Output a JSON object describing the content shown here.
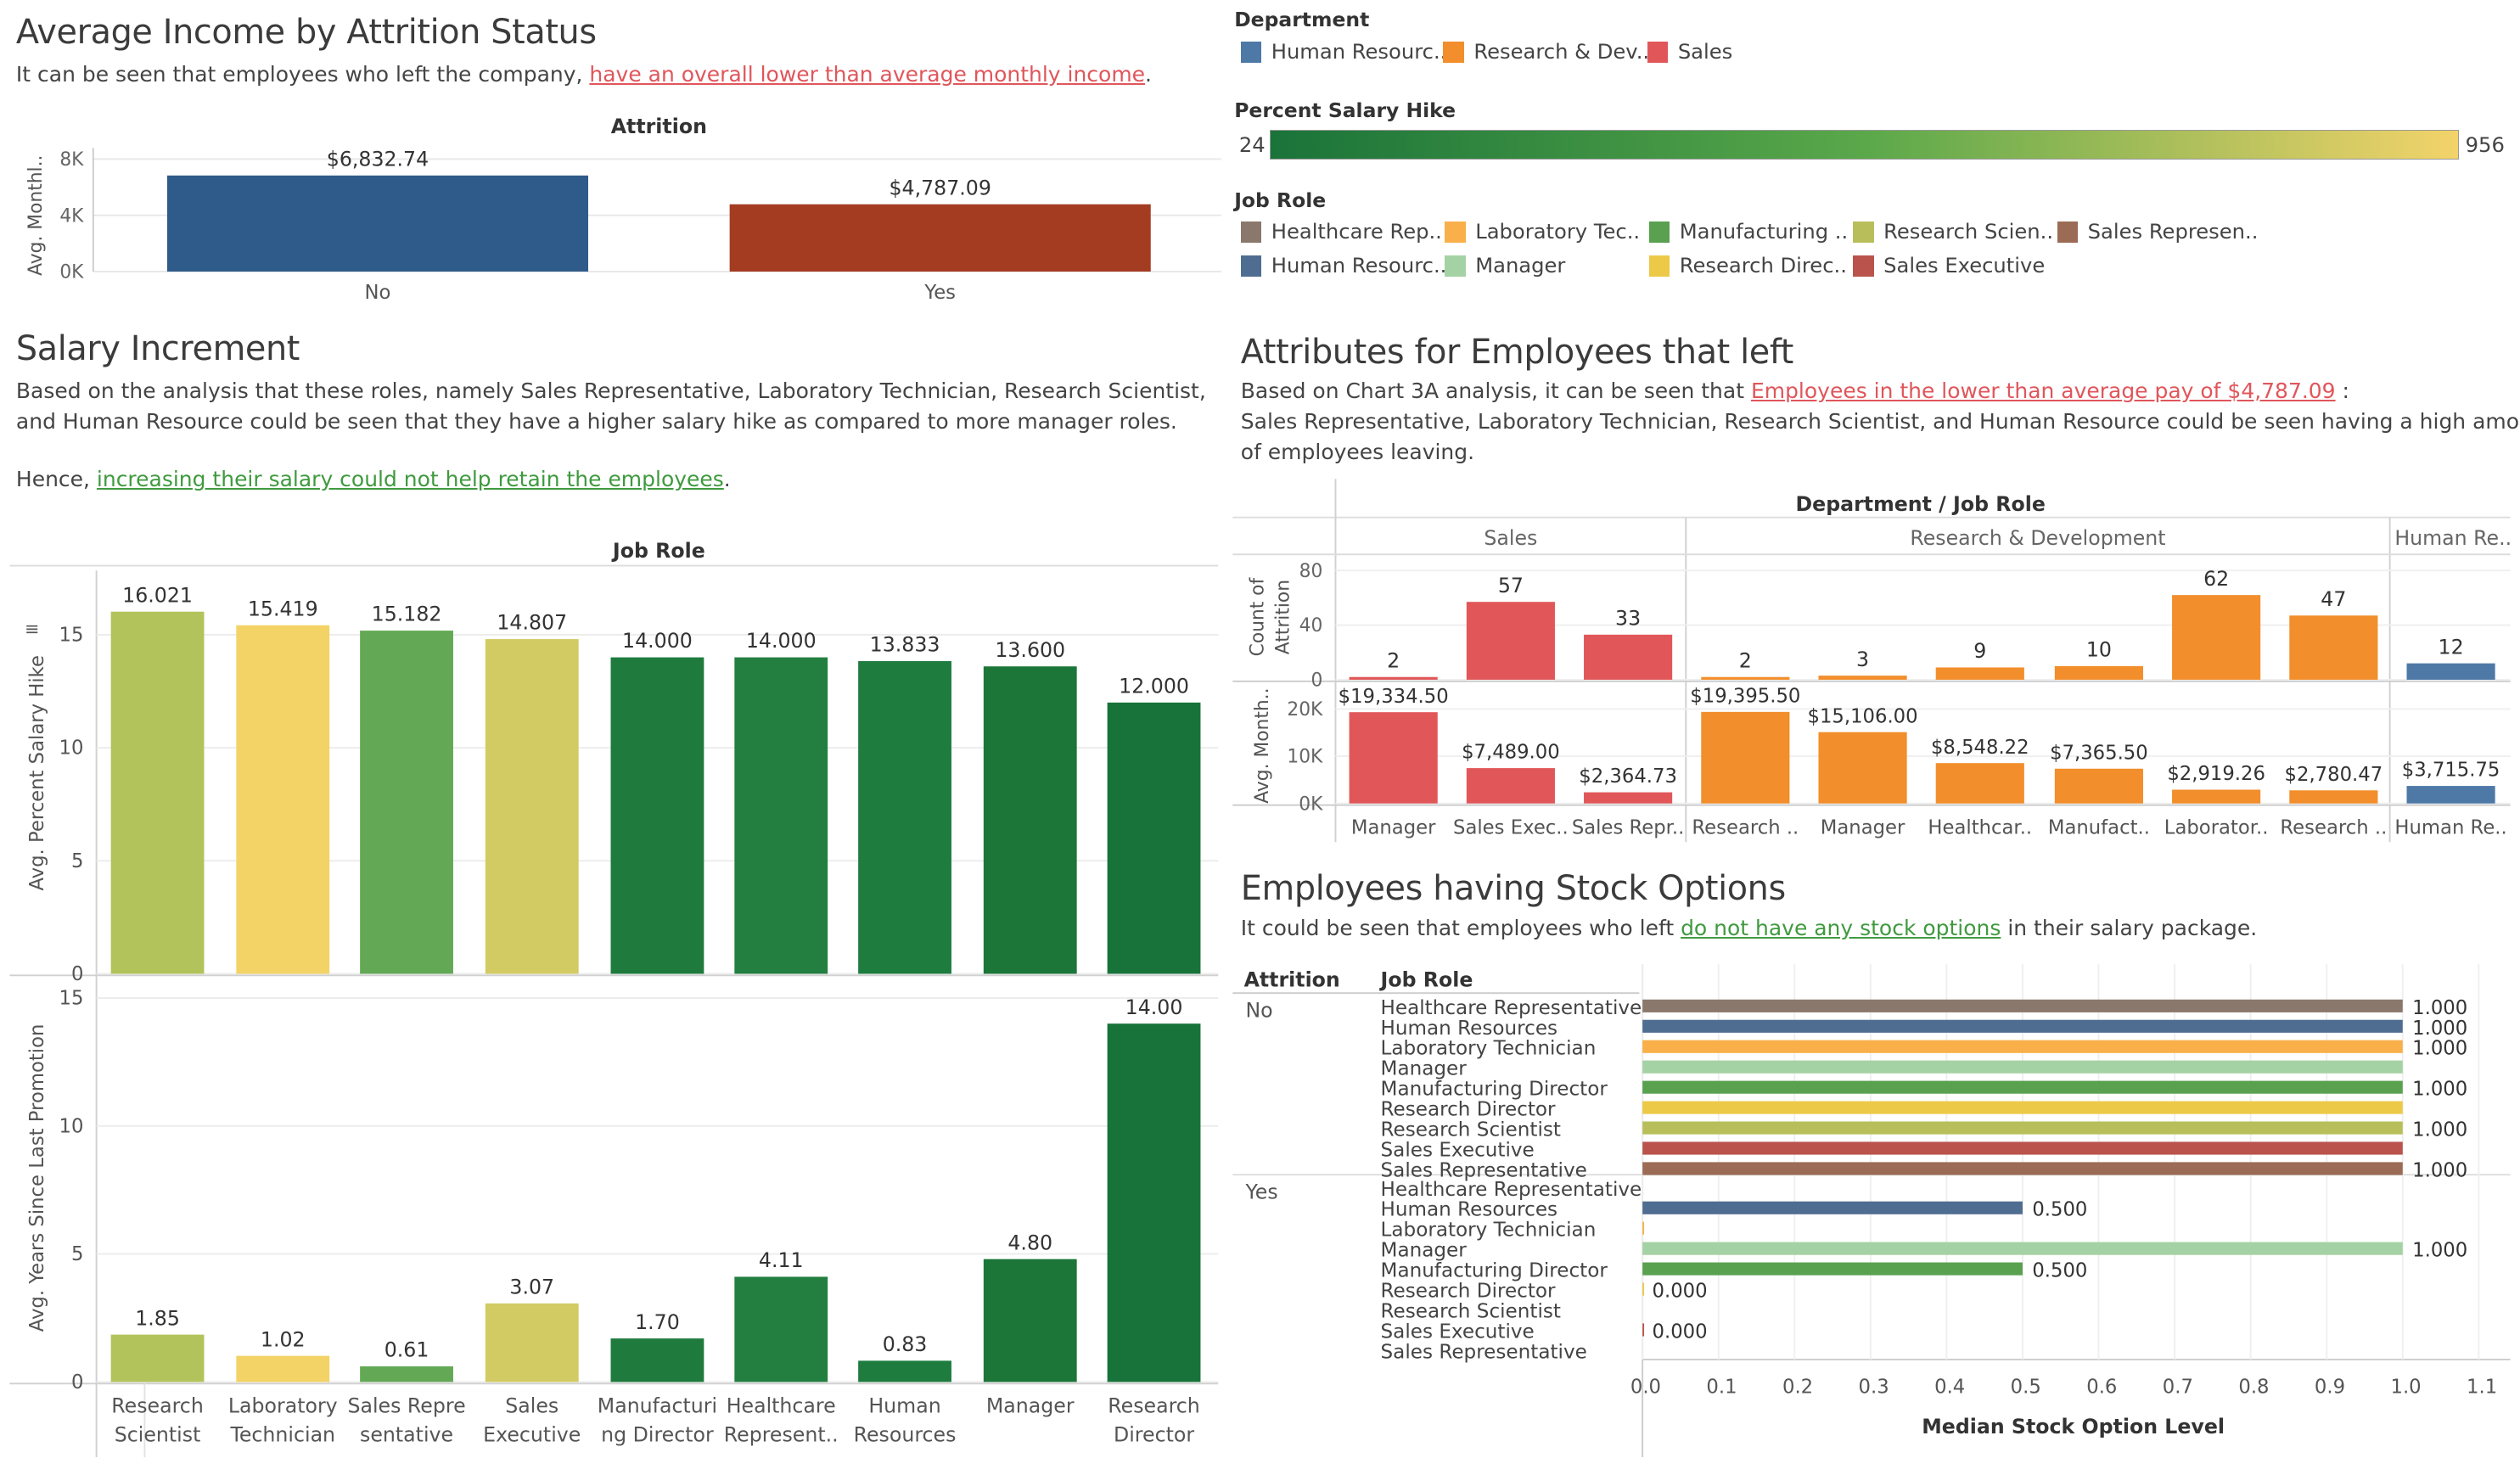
{
  "income_section": {
    "title": "Average Income by Attrition Status",
    "desc_prefix": "It can be seen that employees who left the company, ",
    "desc_link": "have an overall lower than average monthly income",
    "desc_suffix": "."
  },
  "salary_section": {
    "title": "Salary Increment",
    "desc_line1": "Based on the analysis that these roles, namely Sales Representative, Laboratory Technician, Research Scientist,",
    "desc_line2": "and Human Resource could be seen that they have a higher salary hike as compared to more manager roles.",
    "desc_line3_prefix": "Hence, ",
    "desc_line3_link": "increasing their salary could not help retain the employees",
    "desc_line3_suffix": "."
  },
  "attributes_section": {
    "title": "Attributes for Employees that left",
    "desc_line1_prefix": "Based on Chart 3A analysis, it can be seen that ",
    "desc_line1_link": "Employees in the lower than average pay of $4,787.09",
    "desc_line1_suffix": " :",
    "desc_line2": "Sales Representative, Laboratory Technician, Research Scientist, and Human Resource could be seen having a high amount",
    "desc_line3": "of employees leaving."
  },
  "stock_section": {
    "title": "Employees having Stock Options",
    "desc_prefix": "It could be seen that employees who left ",
    "desc_link": "do not have any stock options",
    "desc_suffix": " in their salary package."
  },
  "legends": {
    "department": {
      "title": "Department",
      "items": [
        {
          "label": "Human Resourc..",
          "color": "#4e79a7"
        },
        {
          "label": "Research & Dev..",
          "color": "#f28e2b"
        },
        {
          "label": "Sales",
          "color": "#e15759"
        }
      ]
    },
    "salary_hike": {
      "title": "Percent Salary Hike",
      "min_label": "24",
      "max_label": "956",
      "color_low": "#1a7339",
      "color_mid": "#5aa84a",
      "color_high": "#f3d36a"
    },
    "job_role": {
      "title": "Job Role",
      "items": [
        {
          "label": "Healthcare Rep..",
          "color": "#8a786c"
        },
        {
          "label": "Laboratory Tec..",
          "color": "#f9b04b"
        },
        {
          "label": "Manufacturing ..",
          "color": "#59a14f"
        },
        {
          "label": "Research Scien..",
          "color": "#b8bf5a"
        },
        {
          "label": "Sales Represen..",
          "color": "#9c6b55"
        },
        {
          "label": "Human Resourc..",
          "color": "#4f6d91"
        },
        {
          "label": "Manager",
          "color": "#a5d2a4"
        },
        {
          "label": "Research Direc..",
          "color": "#edc948"
        },
        {
          "label": "Sales Executive",
          "color": "#b9534b"
        }
      ]
    }
  },
  "chart_data": [
    {
      "id": "income",
      "type": "bar",
      "title": "",
      "header": "Attrition",
      "ylabel": "Avg. Monthl..",
      "categories": [
        "No",
        "Yes"
      ],
      "values": [
        6832.74,
        4787.09
      ],
      "labels": [
        "$6,832.74",
        "$4,787.09"
      ],
      "colors": [
        "#2f5b8a",
        "#a43c22"
      ],
      "yticks": [
        "0K",
        "4K",
        "8K"
      ],
      "ylim": [
        0,
        8000
      ]
    },
    {
      "id": "hike",
      "type": "bar",
      "header": "Job Role",
      "ylabel": "Avg. Percent Salary Hike",
      "categories": [
        "Research Scientist",
        "Laboratory Technician",
        "Sales Representative",
        "Sales Executive",
        "Manufacturing Director",
        "Healthcare Representative",
        "Human Resources",
        "Manager",
        "Research Director"
      ],
      "values": [
        16.021,
        15.419,
        15.182,
        14.807,
        14.0,
        14.0,
        13.833,
        13.6,
        12.0
      ],
      "labels": [
        "16.021",
        "15.419",
        "15.182",
        "14.807",
        "14.000",
        "14.000",
        "13.833",
        "13.600",
        "12.000"
      ],
      "colors": [
        "#b3c35c",
        "#f3d266",
        "#63a955",
        "#d2cb63",
        "#1e7b3d",
        "#237f40",
        "#1f7c3f",
        "#1b7638",
        "#18733a"
      ],
      "yticks": [
        "0",
        "5",
        "10",
        "15"
      ],
      "ylim": [
        0,
        17.5
      ]
    },
    {
      "id": "promotion",
      "type": "bar",
      "ylabel": "Avg. Years Since Last Promotion",
      "categories": [
        "Research Scientist",
        "Laboratory Technician",
        "Sales Representative",
        "Sales Executive",
        "Manufacturing Director",
        "Healthcare Representative",
        "Human Resources",
        "Manager",
        "Research Director"
      ],
      "axis_labels": [
        [
          "Research",
          "Scientist"
        ],
        [
          "Laboratory",
          "Technician"
        ],
        [
          "Sales Repre",
          "sentative"
        ],
        [
          "Sales",
          "Executive"
        ],
        [
          "Manufacturi",
          "ng Director"
        ],
        [
          "Healthcare",
          "Represent.."
        ],
        [
          "Human",
          "Resources"
        ],
        [
          "Manager"
        ],
        [
          "Research",
          "Director"
        ]
      ],
      "values": [
        1.85,
        1.02,
        0.61,
        3.07,
        1.7,
        4.11,
        0.83,
        4.8,
        14.0
      ],
      "labels": [
        "1.85",
        "1.02",
        "0.61",
        "3.07",
        "1.70",
        "4.11",
        "0.83",
        "4.80",
        "14.00"
      ],
      "colors": [
        "#b3c35c",
        "#f3d266",
        "#63a955",
        "#d2cb63",
        "#1e7b3d",
        "#237f40",
        "#1f7c3f",
        "#1b7638",
        "#18733a"
      ],
      "yticks": [
        "0",
        "5",
        "10",
        "15"
      ],
      "ylim": [
        0,
        15.5
      ]
    },
    {
      "id": "attrition",
      "type": "bar",
      "header": "Department  /  Job Role",
      "departments": [
        {
          "name": "Sales",
          "count": 3
        },
        {
          "name": "Research & Development",
          "count": 6
        },
        {
          "name": "Human Re..",
          "count": 1
        }
      ],
      "categories": [
        "Manager",
        "Sales Exec..",
        "Sales Repr..",
        "Research ..",
        "Manager",
        "Healthcar..",
        "Manufact..",
        "Laborator..",
        "Research ..",
        "Human Re.."
      ],
      "colors": [
        "#e15759",
        "#e15759",
        "#e15759",
        "#f28e2b",
        "#f28e2b",
        "#f28e2b",
        "#f28e2b",
        "#f28e2b",
        "#f28e2b",
        "#4e79a7"
      ],
      "count": {
        "ylabel": "Count of Attrition",
        "values": [
          2,
          57,
          33,
          2,
          3,
          9,
          10,
          62,
          47,
          12
        ],
        "labels": [
          "2",
          "57",
          "33",
          "2",
          "3",
          "9",
          "10",
          "62",
          "47",
          "12"
        ],
        "yticks": [
          "0",
          "40",
          "80"
        ],
        "ylim": [
          0,
          85
        ]
      },
      "income": {
        "ylabel": "Avg. Month..",
        "values": [
          19334.5,
          7489.0,
          2364.73,
          19395.5,
          15106.0,
          8548.22,
          7365.5,
          2919.26,
          2780.47,
          3715.75
        ],
        "labels": [
          "$19,334.50",
          "$7,489.00",
          "$2,364.73",
          "$19,395.50",
          "$15,106.00",
          "$8,548.22",
          "$7,365.50",
          "$2,919.26",
          "$2,780.47",
          "$3,715.75"
        ],
        "yticks": [
          "0K",
          "10K",
          "20K"
        ],
        "ylim": [
          0,
          24000
        ]
      }
    },
    {
      "id": "stock",
      "type": "bar",
      "orientation": "horizontal",
      "xlabel": "Median Stock Option Level",
      "col_attrition": "Attrition",
      "col_jobrole": "Job Role",
      "roles": [
        "Healthcare Representative",
        "Human Resources",
        "Laboratory Technician",
        "Manager",
        "Manufacturing Director",
        "Research Director",
        "Research Scientist",
        "Sales Executive",
        "Sales Representative"
      ],
      "role_colors": [
        "#8a786c",
        "#4f6d91",
        "#f9b04b",
        "#a5d2a4",
        "#59a14f",
        "#edc948",
        "#b8bf5a",
        "#b9534b",
        "#9c6b55"
      ],
      "groups": [
        {
          "name": "No",
          "values": [
            1,
            1,
            1,
            1,
            1,
            1,
            1,
            1,
            1
          ],
          "labels": [
            "1.000",
            "1.000",
            "1.000",
            "",
            "1.000",
            "",
            "1.000",
            "",
            "1.000"
          ]
        },
        {
          "name": "Yes",
          "values": [
            null,
            0.5,
            0,
            1,
            0.5,
            0,
            null,
            0,
            null
          ],
          "labels": [
            "",
            "0.500",
            "",
            "1.000",
            "0.500",
            "0.000",
            "",
            "0.000",
            ""
          ]
        }
      ],
      "xticks": [
        "0.0",
        "0.1",
        "0.2",
        "0.3",
        "0.4",
        "0.5",
        "0.6",
        "0.7",
        "0.8",
        "0.9",
        "1.0",
        "1.1"
      ],
      "xlim": [
        0,
        1.1
      ]
    }
  ]
}
